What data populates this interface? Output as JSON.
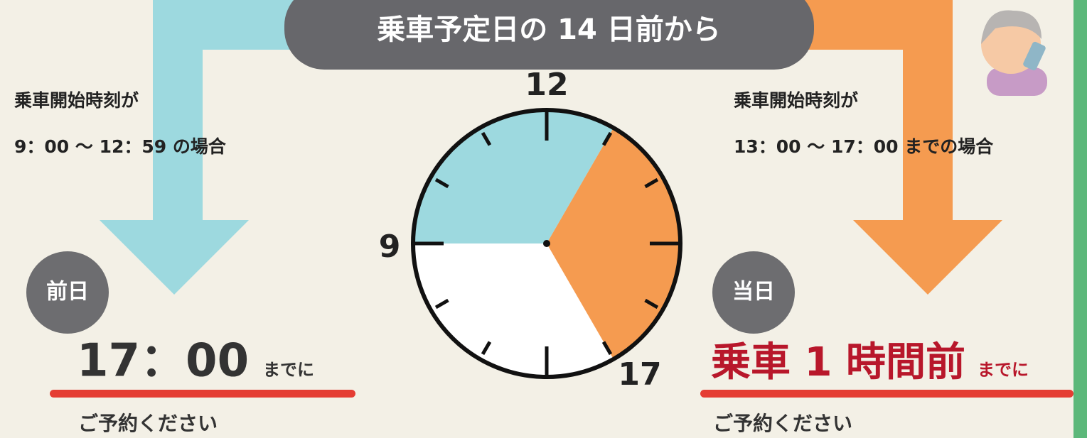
{
  "header": {
    "title": "乗車予定日の 14 日前から"
  },
  "left": {
    "condition_line1": "乗車開始時刻が",
    "condition_line2": "9：00 〜 12：59 の場合",
    "badge": "前日",
    "deadline": "17：00",
    "deadline_suffix": "までに",
    "action": "ご予約ください"
  },
  "right": {
    "condition_line1": "乗車開始時刻が",
    "condition_line2": "13：00 〜 17：00 までの場合",
    "badge": "当日",
    "deadline": "乗車 1 時間前",
    "deadline_suffix": "までに",
    "action": "ご予約ください"
  },
  "clock": {
    "label_top": "12",
    "label_left": "9",
    "label_bottom_right": "17"
  }
}
